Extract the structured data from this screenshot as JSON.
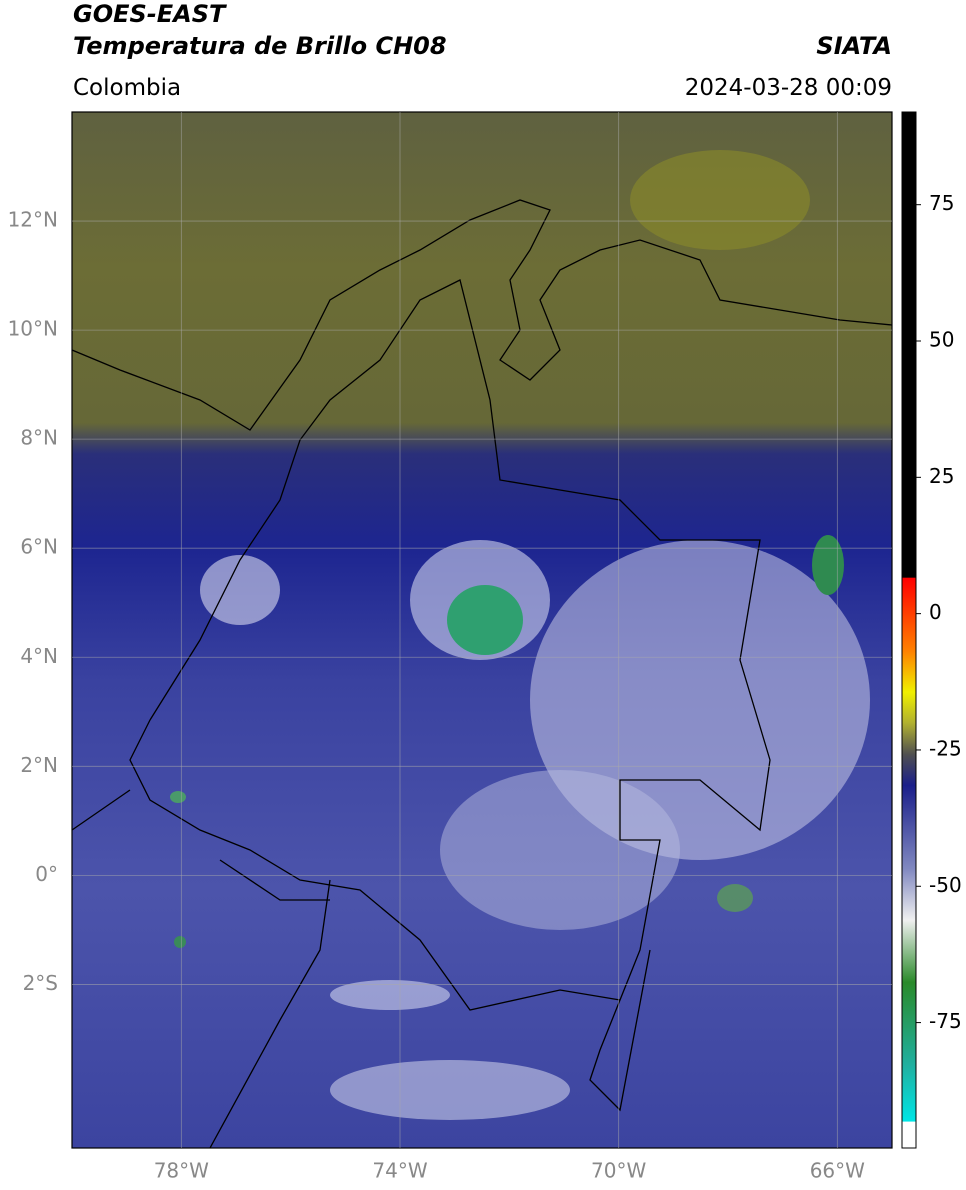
{
  "map": {
    "title": "GOES-EAST",
    "subtitle": "Temperatura de Brillo CH08",
    "source": "SIATA",
    "region": "Colombia",
    "datetime": "2024-03-28 00:09",
    "lonlim": [
      -80,
      -65
    ],
    "latlim": [
      -5,
      14
    ],
    "lonticks": [
      {
        "value": -78,
        "label": "78°W"
      },
      {
        "value": -74,
        "label": "74°W"
      },
      {
        "value": -70,
        "label": "70°W"
      },
      {
        "value": -66,
        "label": "66°W"
      }
    ],
    "latticks": [
      {
        "value": 12,
        "label": "12°N"
      },
      {
        "value": 10,
        "label": "10°N"
      },
      {
        "value": 8,
        "label": "8°N"
      },
      {
        "value": 6,
        "label": "6°N"
      },
      {
        "value": 4,
        "label": "4°N"
      },
      {
        "value": 2,
        "label": "2°N"
      },
      {
        "value": 0,
        "label": "0°"
      },
      {
        "value": -2,
        "label": "2°S"
      }
    ],
    "grid": true,
    "colorbar": {
      "lim": [
        -98,
        92
      ],
      "ticks": [
        75,
        50,
        25,
        0,
        -25,
        -50,
        -75
      ]
    }
  }
}
